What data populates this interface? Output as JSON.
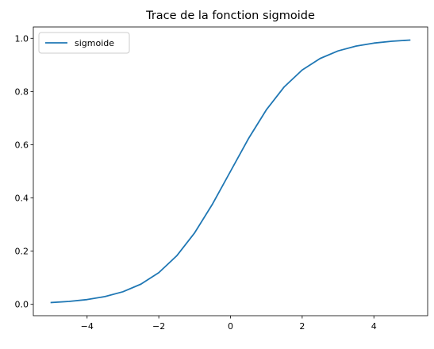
{
  "chart_data": {
    "type": "line",
    "title": "Trace de la fonction sigmoide",
    "xlabel": "",
    "ylabel": "",
    "xlim": [
      -5.5,
      5.5
    ],
    "ylim": [
      -0.0426,
      1.0426
    ],
    "x_ticks": [
      -4,
      -2,
      0,
      2,
      4
    ],
    "x_tick_labels": [
      "−4",
      "−2",
      "0",
      "2",
      "4"
    ],
    "y_ticks": [
      0.0,
      0.2,
      0.4,
      0.6,
      0.8,
      1.0
    ],
    "y_tick_labels": [
      "0.0",
      "0.2",
      "0.4",
      "0.6",
      "0.8",
      "1.0"
    ],
    "grid": false,
    "legend": {
      "position": "upper-left",
      "entries": [
        "sigmoide"
      ]
    },
    "series": [
      {
        "name": "sigmoide",
        "color": "#1f77b4",
        "x": [
          -5,
          -4.5,
          -4,
          -3.5,
          -3,
          -2.5,
          -2,
          -1.5,
          -1,
          -0.5,
          0,
          0.5,
          1,
          1.5,
          2,
          2.5,
          3,
          3.5,
          4,
          4.5,
          5
        ],
        "y": [
          0.0067,
          0.011,
          0.018,
          0.0293,
          0.0474,
          0.0759,
          0.1192,
          0.1824,
          0.2689,
          0.3775,
          0.5,
          0.6225,
          0.7311,
          0.8176,
          0.8808,
          0.9241,
          0.9526,
          0.9707,
          0.982,
          0.989,
          0.9933
        ]
      }
    ]
  }
}
